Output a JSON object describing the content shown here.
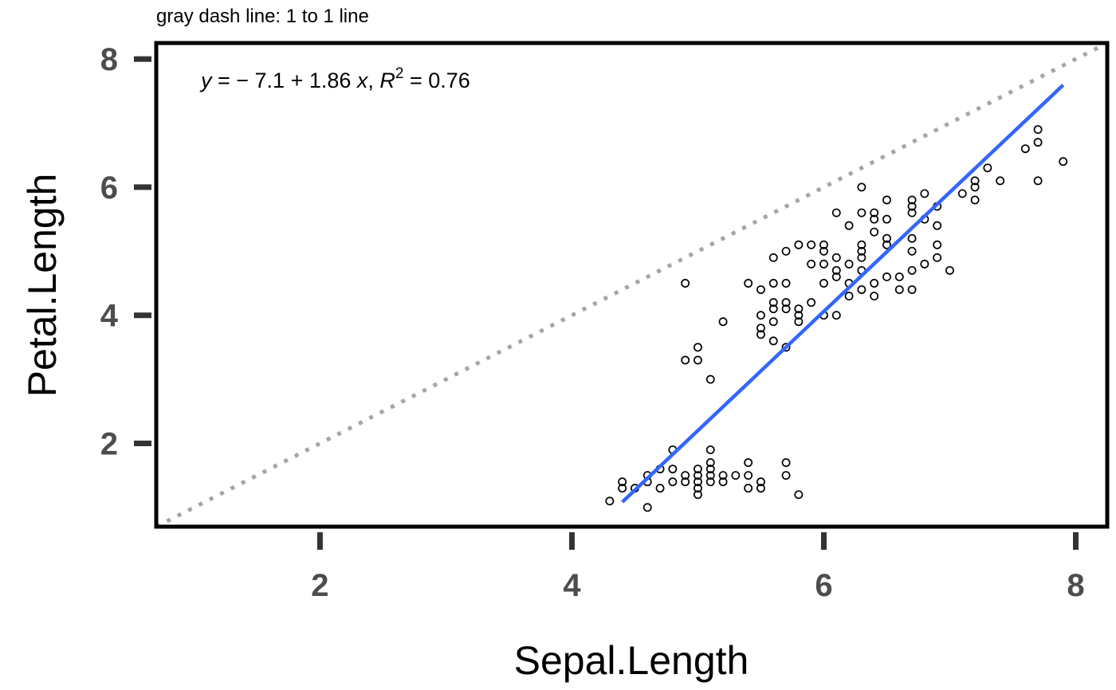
{
  "subtitle": "gray dash line: 1 to 1 line",
  "annotation": {
    "y_var": "y",
    "equation_body": " = − 7.1 + 1.86 ",
    "x_var": "x",
    "separator": ", ",
    "r_var": "R",
    "r_power": "2",
    "r_value": " = 0.76"
  },
  "colors": {
    "points": "#000000",
    "fit_line": "#3366ff",
    "identity_line": "#a6a6a6",
    "tick_label": "#4d4d4d",
    "axis_line": "#000000"
  },
  "chart_data": {
    "type": "scatter",
    "title": "",
    "subtitle": "gray dash line: 1 to 1 line",
    "xlabel": "Sepal.Length",
    "ylabel": "Petal.Length",
    "xlim": [
      0.7,
      8.25
    ],
    "ylim": [
      0.7,
      8.25
    ],
    "x_ticks": [
      2,
      4,
      6,
      8
    ],
    "y_ticks": [
      2,
      4,
      6,
      8
    ],
    "grid": false,
    "fit_line": {
      "intercept": -7.1,
      "slope": 1.86,
      "r_squared": 0.76,
      "x_range": [
        4.4,
        7.9
      ],
      "color": "#3366ff"
    },
    "identity_line": {
      "intercept": 0,
      "slope": 1,
      "style": "dotted",
      "color": "#a6a6a6"
    },
    "points": [
      [
        4.3,
        1.1
      ],
      [
        4.4,
        1.3
      ],
      [
        4.4,
        1.4
      ],
      [
        4.5,
        1.3
      ],
      [
        4.6,
        1.0
      ],
      [
        4.6,
        1.4
      ],
      [
        4.6,
        1.5
      ],
      [
        4.7,
        1.3
      ],
      [
        4.7,
        1.6
      ],
      [
        4.8,
        1.4
      ],
      [
        4.8,
        1.6
      ],
      [
        4.8,
        1.9
      ],
      [
        4.9,
        1.4
      ],
      [
        4.9,
        1.5
      ],
      [
        4.9,
        3.3
      ],
      [
        4.9,
        4.5
      ],
      [
        5.0,
        1.2
      ],
      [
        5.0,
        1.3
      ],
      [
        5.0,
        1.4
      ],
      [
        5.0,
        1.5
      ],
      [
        5.0,
        1.6
      ],
      [
        5.0,
        3.3
      ],
      [
        5.0,
        3.5
      ],
      [
        5.1,
        1.4
      ],
      [
        5.1,
        1.5
      ],
      [
        5.1,
        1.6
      ],
      [
        5.1,
        1.7
      ],
      [
        5.1,
        1.9
      ],
      [
        5.1,
        3.0
      ],
      [
        5.2,
        1.4
      ],
      [
        5.2,
        1.5
      ],
      [
        5.2,
        3.9
      ],
      [
        5.3,
        1.5
      ],
      [
        5.4,
        1.3
      ],
      [
        5.4,
        1.5
      ],
      [
        5.4,
        1.7
      ],
      [
        5.4,
        4.5
      ],
      [
        5.5,
        1.3
      ],
      [
        5.5,
        1.4
      ],
      [
        5.5,
        3.7
      ],
      [
        5.5,
        3.8
      ],
      [
        5.5,
        4.0
      ],
      [
        5.5,
        4.4
      ],
      [
        5.6,
        3.6
      ],
      [
        5.6,
        3.9
      ],
      [
        5.6,
        4.1
      ],
      [
        5.6,
        4.2
      ],
      [
        5.6,
        4.5
      ],
      [
        5.6,
        4.9
      ],
      [
        5.7,
        1.5
      ],
      [
        5.7,
        1.7
      ],
      [
        5.7,
        3.5
      ],
      [
        5.7,
        4.1
      ],
      [
        5.7,
        4.2
      ],
      [
        5.7,
        4.5
      ],
      [
        5.7,
        5.0
      ],
      [
        5.8,
        1.2
      ],
      [
        5.8,
        3.9
      ],
      [
        5.8,
        4.0
      ],
      [
        5.8,
        4.1
      ],
      [
        5.8,
        5.1
      ],
      [
        5.9,
        4.2
      ],
      [
        5.9,
        4.8
      ],
      [
        5.9,
        5.1
      ],
      [
        6.0,
        4.0
      ],
      [
        6.0,
        4.5
      ],
      [
        6.0,
        4.8
      ],
      [
        6.0,
        5.0
      ],
      [
        6.0,
        5.1
      ],
      [
        6.1,
        4.0
      ],
      [
        6.1,
        4.6
      ],
      [
        6.1,
        4.7
      ],
      [
        6.1,
        4.9
      ],
      [
        6.1,
        5.6
      ],
      [
        6.2,
        4.3
      ],
      [
        6.2,
        4.5
      ],
      [
        6.2,
        4.8
      ],
      [
        6.2,
        5.4
      ],
      [
        6.3,
        4.4
      ],
      [
        6.3,
        4.7
      ],
      [
        6.3,
        4.9
      ],
      [
        6.3,
        5.0
      ],
      [
        6.3,
        5.1
      ],
      [
        6.3,
        5.6
      ],
      [
        6.3,
        6.0
      ],
      [
        6.4,
        4.3
      ],
      [
        6.4,
        4.5
      ],
      [
        6.4,
        5.3
      ],
      [
        6.4,
        5.5
      ],
      [
        6.4,
        5.6
      ],
      [
        6.5,
        4.6
      ],
      [
        6.5,
        5.1
      ],
      [
        6.5,
        5.2
      ],
      [
        6.5,
        5.5
      ],
      [
        6.5,
        5.8
      ],
      [
        6.6,
        4.4
      ],
      [
        6.6,
        4.6
      ],
      [
        6.7,
        4.4
      ],
      [
        6.7,
        4.7
      ],
      [
        6.7,
        5.0
      ],
      [
        6.7,
        5.2
      ],
      [
        6.7,
        5.6
      ],
      [
        6.7,
        5.7
      ],
      [
        6.7,
        5.8
      ],
      [
        6.8,
        4.8
      ],
      [
        6.8,
        5.5
      ],
      [
        6.8,
        5.9
      ],
      [
        6.9,
        4.9
      ],
      [
        6.9,
        5.1
      ],
      [
        6.9,
        5.4
      ],
      [
        6.9,
        5.7
      ],
      [
        7.0,
        4.7
      ],
      [
        7.1,
        5.9
      ],
      [
        7.2,
        5.8
      ],
      [
        7.2,
        6.0
      ],
      [
        7.2,
        6.1
      ],
      [
        7.3,
        6.3
      ],
      [
        7.4,
        6.1
      ],
      [
        7.6,
        6.6
      ],
      [
        7.7,
        6.1
      ],
      [
        7.7,
        6.7
      ],
      [
        7.7,
        6.9
      ],
      [
        7.9,
        6.4
      ]
    ]
  }
}
